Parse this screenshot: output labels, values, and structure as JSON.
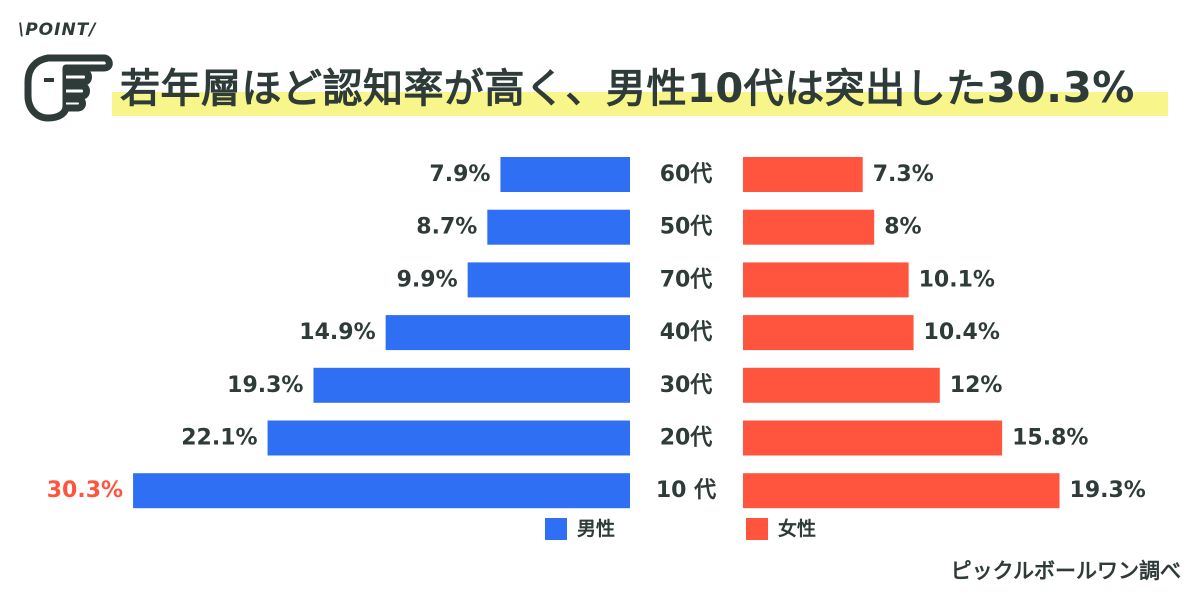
{
  "header": {
    "tag": "\\POINT/",
    "title_text": "若年層ほど認知率が高く、男性10代は突出した",
    "title_value": "30.3%",
    "hand_icon": "pointing-hand-icon"
  },
  "source": "ピックルボールワン調べ",
  "colors": {
    "male": "#2f6ff3",
    "female": "#ff553f",
    "text": "#2e3b39",
    "highlight_value": "#ff553f",
    "title_highlight": "#f8f58a"
  },
  "chart_data": {
    "type": "bar",
    "orientation": "horizontal-butterfly",
    "categories": [
      "60代",
      "50代",
      "70代",
      "40代",
      "30代",
      "20代",
      "10 代"
    ],
    "series": [
      {
        "name": "男性",
        "values": [
          7.9,
          8.7,
          9.9,
          14.9,
          19.3,
          22.1,
          30.3
        ]
      },
      {
        "name": "女性",
        "values": [
          7.3,
          8,
          10.1,
          10.4,
          12,
          15.8,
          19.3
        ]
      }
    ],
    "male_labels": [
      "7.9%",
      "8.7%",
      "9.9%",
      "14.9%",
      "19.3%",
      "22.1%",
      "30.3%"
    ],
    "female_labels": [
      "7.3%",
      "8%",
      "10.1%",
      "10.4%",
      "12%",
      "15.8%",
      "19.3%"
    ],
    "highlight": {
      "series": "男性",
      "category": "10 代"
    },
    "unit": "%",
    "legend_placement": "bottom"
  }
}
